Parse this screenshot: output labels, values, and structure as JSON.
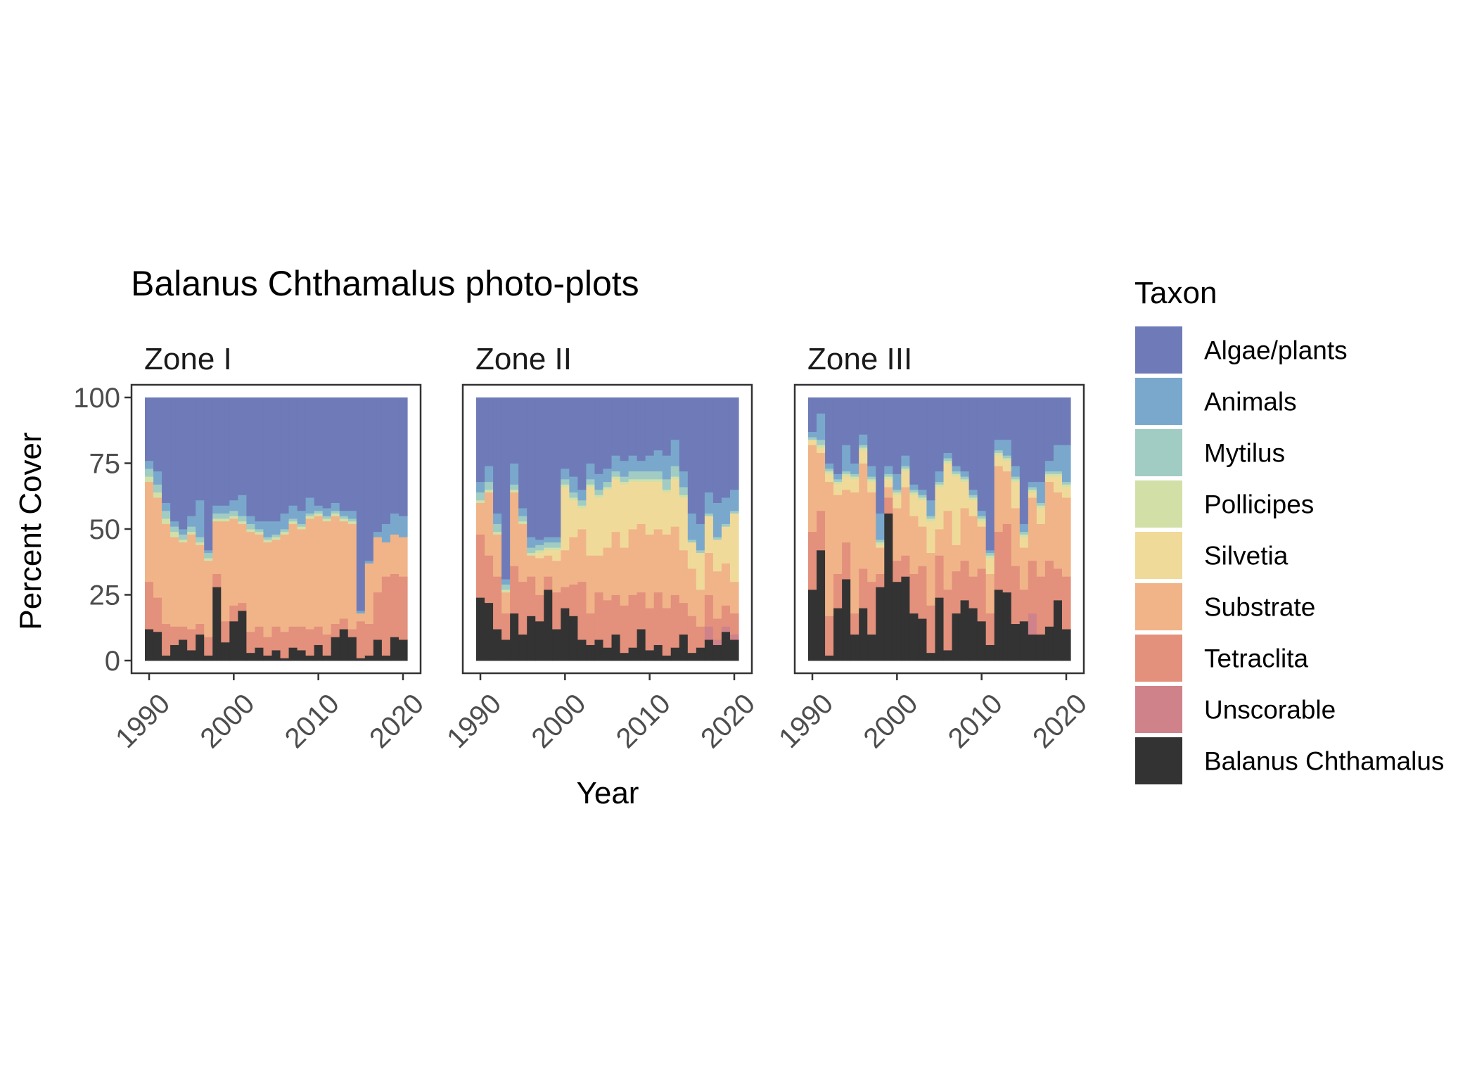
{
  "chart_data": {
    "type": "area",
    "title": "Balanus Chthamalus photo-plots",
    "xlabel": "Year",
    "ylabel": "Percent Cover",
    "xlim": [
      1989.5,
      2020.5
    ],
    "ylim": [
      0,
      100
    ],
    "x_ticks": [
      1990,
      2000,
      2010,
      2020
    ],
    "y_ticks": [
      0,
      25,
      50,
      75,
      100
    ],
    "years": [
      1990,
      1991,
      1992,
      1993,
      1994,
      1995,
      1996,
      1997,
      1998,
      1999,
      2000,
      2001,
      2002,
      2003,
      2004,
      2005,
      2006,
      2007,
      2008,
      2009,
      2010,
      2011,
      2012,
      2013,
      2014,
      2015,
      2016,
      2017,
      2018,
      2019,
      2020
    ],
    "legend": {
      "title": "Taxon",
      "position": "right",
      "entries": [
        {
          "name": "Algae/plants",
          "color": "#6e7bb8"
        },
        {
          "name": "Animals",
          "color": "#7aa8cc"
        },
        {
          "name": "Mytilus",
          "color": "#a0ccc4"
        },
        {
          "name": "Pollicipes",
          "color": "#d2e0a8"
        },
        {
          "name": "Silvetia",
          "color": "#f0da9a"
        },
        {
          "name": "Substrate",
          "color": "#f0b488"
        },
        {
          "name": "Tetraclita",
          "color": "#e3907c"
        },
        {
          "name": "Unscorable",
          "color": "#d0828a"
        },
        {
          "name": "Balanus Chthamalus",
          "color": "#333333"
        }
      ]
    },
    "panels": [
      {
        "name": "Zone I",
        "series": {
          "Balanus Chthamalus": [
            12,
            11,
            2,
            6,
            8,
            4,
            10,
            2,
            28,
            7,
            15,
            19,
            3,
            5,
            2,
            4,
            1,
            5,
            4,
            2,
            6,
            2,
            9,
            12,
            9,
            1,
            2,
            8,
            2,
            9,
            8
          ],
          "Unscorable": [
            0,
            0,
            0,
            0,
            0,
            0,
            0,
            0,
            0,
            0,
            0,
            0,
            0,
            0,
            0,
            0,
            0,
            0,
            0,
            0,
            0,
            0,
            0,
            0,
            0,
            0,
            0,
            0,
            0,
            0,
            0
          ],
          "Tetraclita": [
            18,
            13,
            12,
            7,
            5,
            8,
            4,
            7,
            5,
            8,
            6,
            3,
            8,
            8,
            7,
            9,
            10,
            8,
            9,
            10,
            7,
            8,
            5,
            4,
            3,
            14,
            12,
            18,
            30,
            24,
            24
          ],
          "Substrate": [
            38,
            38,
            38,
            34,
            32,
            36,
            30,
            29,
            20,
            38,
            33,
            30,
            38,
            35,
            36,
            33,
            37,
            39,
            37,
            42,
            42,
            43,
            41,
            37,
            40,
            3,
            23,
            21,
            13,
            15,
            15
          ],
          "Silvetia": [
            0,
            0,
            0,
            0,
            0,
            0,
            0,
            0,
            0,
            0,
            0,
            0,
            0,
            0,
            0,
            0,
            0,
            0,
            0,
            0,
            0,
            0,
            0,
            0,
            0,
            0,
            0,
            0,
            0,
            0,
            0
          ],
          "Pollicipes": [
            2,
            2,
            2,
            2,
            1,
            1,
            1,
            1,
            1,
            1,
            1,
            1,
            1,
            1,
            1,
            1,
            1,
            1,
            1,
            1,
            1,
            1,
            1,
            1,
            1,
            0,
            0,
            0,
            0,
            0,
            0
          ],
          "Mytilus": [
            3,
            3,
            3,
            2,
            2,
            2,
            2,
            2,
            2,
            2,
            2,
            2,
            2,
            1,
            1,
            1,
            1,
            1,
            1,
            1,
            1,
            1,
            1,
            1,
            1,
            0,
            0,
            0,
            0,
            0,
            0
          ],
          "Animals": [
            3,
            5,
            3,
            2,
            2,
            4,
            14,
            1,
            3,
            3,
            4,
            8,
            3,
            3,
            6,
            5,
            6,
            5,
            5,
            6,
            2,
            3,
            3,
            2,
            3,
            1,
            1,
            2,
            7,
            8,
            8
          ],
          "Algae/plants": [
            24,
            28,
            40,
            47,
            50,
            45,
            39,
            58,
            41,
            41,
            39,
            37,
            45,
            47,
            47,
            47,
            44,
            41,
            43,
            38,
            41,
            42,
            40,
            43,
            43,
            81,
            62,
            51,
            48,
            44,
            45
          ]
        }
      },
      {
        "name": "Zone II",
        "series": {
          "Balanus Chthamalus": [
            24,
            22,
            12,
            8,
            18,
            10,
            17,
            15,
            27,
            12,
            20,
            17,
            8,
            6,
            8,
            5,
            10,
            3,
            5,
            12,
            4,
            6,
            2,
            5,
            10,
            3,
            5,
            8,
            6,
            11,
            8
          ],
          "Unscorable": [
            0,
            0,
            0,
            0,
            0,
            0,
            0,
            0,
            0,
            0,
            0,
            0,
            0,
            0,
            0,
            0,
            0,
            0,
            0,
            0,
            0,
            0,
            0,
            0,
            0,
            0,
            0,
            5,
            2,
            2,
            2
          ],
          "Tetraclita": [
            24,
            18,
            20,
            10,
            18,
            20,
            15,
            10,
            5,
            14,
            8,
            12,
            22,
            12,
            18,
            18,
            15,
            18,
            20,
            14,
            16,
            20,
            18,
            20,
            12,
            14,
            8,
            12,
            8,
            8,
            8
          ],
          "Substrate": [
            12,
            24,
            16,
            8,
            28,
            22,
            8,
            14,
            8,
            12,
            14,
            18,
            20,
            22,
            14,
            20,
            24,
            22,
            25,
            26,
            28,
            24,
            28,
            26,
            20,
            18,
            14,
            16,
            18,
            16,
            12
          ],
          "Silvetia": [
            0,
            0,
            0,
            0,
            0,
            0,
            0,
            2,
            2,
            4,
            24,
            14,
            8,
            26,
            22,
            22,
            20,
            24,
            18,
            16,
            20,
            18,
            16,
            18,
            20,
            10,
            14,
            14,
            12,
            14,
            26
          ],
          "Pollicipes": [
            1,
            1,
            1,
            1,
            1,
            1,
            1,
            1,
            1,
            1,
            1,
            1,
            1,
            1,
            1,
            1,
            1,
            1,
            1,
            1,
            1,
            1,
            1,
            1,
            1,
            0,
            0,
            0,
            0,
            0,
            0
          ],
          "Mytilus": [
            3,
            3,
            3,
            2,
            2,
            2,
            2,
            2,
            2,
            2,
            2,
            2,
            2,
            2,
            2,
            2,
            2,
            2,
            3,
            3,
            3,
            3,
            4,
            4,
            3,
            1,
            1,
            1,
            1,
            1,
            1
          ],
          "Animals": [
            4,
            6,
            4,
            2,
            8,
            3,
            4,
            2,
            2,
            2,
            4,
            6,
            4,
            6,
            6,
            5,
            6,
            6,
            6,
            4,
            6,
            8,
            9,
            10,
            6,
            10,
            10,
            8,
            13,
            10,
            8
          ],
          "Algae/plants": [
            32,
            26,
            44,
            69,
            25,
            42,
            53,
            54,
            53,
            53,
            27,
            30,
            35,
            25,
            29,
            27,
            22,
            24,
            22,
            24,
            22,
            20,
            22,
            16,
            28,
            44,
            48,
            36,
            40,
            38,
            35
          ]
        }
      },
      {
        "name": "Zone III",
        "series": {
          "Balanus Chthamalus": [
            27,
            42,
            2,
            20,
            31,
            10,
            20,
            10,
            28,
            56,
            30,
            32,
            18,
            16,
            3,
            24,
            4,
            18,
            23,
            20,
            15,
            6,
            27,
            26,
            14,
            15,
            10,
            10,
            13,
            23,
            12
          ],
          "Unscorable": [
            0,
            0,
            0,
            0,
            0,
            0,
            0,
            0,
            0,
            0,
            0,
            0,
            0,
            0,
            0,
            0,
            0,
            0,
            0,
            0,
            0,
            0,
            0,
            0,
            0,
            0,
            8,
            0,
            0,
            0,
            0
          ],
          "Tetraclita": [
            22,
            15,
            15,
            13,
            14,
            8,
            15,
            20,
            5,
            6,
            8,
            8,
            15,
            20,
            18,
            16,
            23,
            16,
            15,
            12,
            20,
            12,
            22,
            26,
            22,
            12,
            20,
            22,
            25,
            12,
            20
          ],
          "Substrate": [
            33,
            22,
            51,
            30,
            20,
            46,
            40,
            34,
            10,
            4,
            20,
            26,
            22,
            15,
            20,
            10,
            30,
            10,
            20,
            23,
            16,
            15,
            25,
            20,
            22,
            16,
            24,
            20,
            30,
            29,
            30
          ],
          "Silvetia": [
            2,
            2,
            3,
            4,
            5,
            5,
            5,
            4,
            1,
            3,
            5,
            6,
            8,
            10,
            12,
            16,
            18,
            26,
            10,
            6,
            2,
            6,
            4,
            4,
            10,
            4,
            2,
            6,
            2,
            6,
            4
          ],
          "Pollicipes": [
            0,
            1,
            1,
            1,
            1,
            1,
            1,
            1,
            1,
            1,
            1,
            1,
            1,
            1,
            1,
            1,
            1,
            1,
            1,
            1,
            1,
            1,
            1,
            1,
            1,
            1,
            1,
            1,
            1,
            1,
            1
          ],
          "Mytilus": [
            1,
            2,
            1,
            1,
            1,
            1,
            1,
            1,
            1,
            1,
            1,
            1,
            1,
            1,
            1,
            1,
            1,
            1,
            1,
            1,
            1,
            1,
            1,
            1,
            1,
            1,
            1,
            1,
            1,
            1,
            1
          ],
          "Animals": [
            2,
            10,
            2,
            2,
            10,
            4,
            4,
            4,
            10,
            3,
            6,
            4,
            2,
            2,
            6,
            4,
            2,
            2,
            2,
            2,
            2,
            1,
            4,
            6,
            4,
            3,
            2,
            8,
            4,
            10,
            14
          ],
          "Algae/plants": [
            13,
            6,
            25,
            29,
            18,
            25,
            14,
            26,
            44,
            26,
            29,
            22,
            33,
            35,
            39,
            28,
            21,
            26,
            28,
            35,
            43,
            58,
            16,
            16,
            26,
            48,
            32,
            32,
            24,
            18,
            18
          ]
        }
      }
    ]
  }
}
